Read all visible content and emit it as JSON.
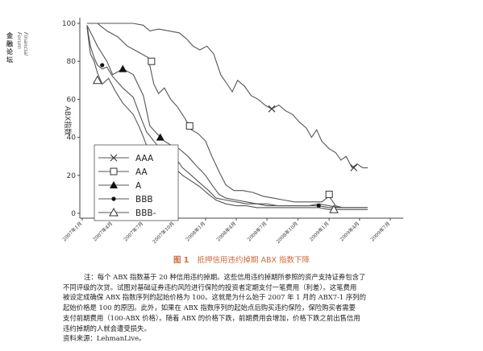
{
  "sidebar": {
    "title_zh": "金融论坛",
    "title_en": "Financial Forum"
  },
  "colors": {
    "line": "#555555",
    "axis": "#444444",
    "caption": "#d06a3c"
  },
  "chart_data": {
    "type": "line",
    "ylabel": "ABX指数",
    "yticks": [
      0,
      20,
      40,
      60,
      80,
      100
    ],
    "ylim": [
      0,
      100
    ],
    "xlim": [
      "2007-01-01",
      "2009-08-01"
    ],
    "xticks": [
      "2007年1月",
      "2007年4月",
      "2007年7月",
      "2007年10月",
      "2008年1月",
      "2008年4月",
      "2008年7月",
      "2008年10月",
      "2009年1月",
      "2009年4月",
      "2009年7月"
    ],
    "xtick_dates": [
      "2007-01-01",
      "2007-04-01",
      "2007-07-01",
      "2007-10-01",
      "2008-01-01",
      "2008-04-01",
      "2008-07-01",
      "2008-10-01",
      "2009-01-01",
      "2009-04-01",
      "2009-07-01"
    ],
    "legend_position": "bottom-left",
    "series": [
      {
        "name": "AAA",
        "marker": "x",
        "points": [
          [
            "2007-01-15",
            100
          ],
          [
            "2007-04-01",
            100
          ],
          [
            "2007-06-01",
            100
          ],
          [
            "2007-07-01",
            99
          ],
          [
            "2007-07-20",
            96
          ],
          [
            "2007-08-15",
            97
          ],
          [
            "2007-09-15",
            96
          ],
          [
            "2007-10-15",
            95
          ],
          [
            "2007-11-05",
            92
          ],
          [
            "2007-11-25",
            88
          ],
          [
            "2007-12-15",
            86
          ],
          [
            "2008-01-05",
            88
          ],
          [
            "2008-01-25",
            84
          ],
          [
            "2008-02-15",
            73
          ],
          [
            "2008-03-05",
            68
          ],
          [
            "2008-03-20",
            64
          ],
          [
            "2008-04-05",
            70
          ],
          [
            "2008-04-25",
            67
          ],
          [
            "2008-05-15",
            62
          ],
          [
            "2008-06-05",
            60
          ],
          [
            "2008-06-25",
            57
          ],
          [
            "2008-07-15",
            55
          ],
          [
            "2008-08-05",
            57
          ],
          [
            "2008-08-25",
            54
          ],
          [
            "2008-09-15",
            52
          ],
          [
            "2008-10-05",
            48
          ],
          [
            "2008-10-25",
            45
          ],
          [
            "2008-11-10",
            40
          ],
          [
            "2008-11-25",
            44
          ],
          [
            "2008-12-10",
            38
          ],
          [
            "2009-01-01",
            34
          ],
          [
            "2009-01-20",
            32
          ],
          [
            "2009-02-05",
            28
          ],
          [
            "2009-02-20",
            30
          ],
          [
            "2009-03-10",
            24
          ],
          [
            "2009-03-25",
            26
          ],
          [
            "2009-04-10",
            24
          ],
          [
            "2009-04-25",
            24
          ]
        ],
        "markers": [
          [
            "2008-07-15",
            55
          ],
          [
            "2009-03-15",
            24
          ]
        ]
      },
      {
        "name": "AA",
        "marker": "square",
        "points": [
          [
            "2007-01-15",
            100
          ],
          [
            "2007-02-15",
            100
          ],
          [
            "2007-03-15",
            96
          ],
          [
            "2007-04-15",
            93
          ],
          [
            "2007-05-15",
            88
          ],
          [
            "2007-06-15",
            85
          ],
          [
            "2007-07-15",
            82
          ],
          [
            "2007-08-01",
            68
          ],
          [
            "2007-08-15",
            63
          ],
          [
            "2007-09-01",
            66
          ],
          [
            "2007-09-20",
            60
          ],
          [
            "2007-10-10",
            56
          ],
          [
            "2007-11-01",
            50
          ],
          [
            "2007-11-20",
            44
          ],
          [
            "2007-12-10",
            42
          ],
          [
            "2008-01-01",
            38
          ],
          [
            "2008-01-20",
            30
          ],
          [
            "2008-02-10",
            22
          ],
          [
            "2008-03-01",
            15
          ],
          [
            "2008-03-25",
            12
          ],
          [
            "2008-04-20",
            12
          ],
          [
            "2008-05-20",
            11
          ],
          [
            "2008-06-20",
            9
          ],
          [
            "2008-07-20",
            8
          ],
          [
            "2008-08-20",
            7
          ],
          [
            "2008-09-20",
            6
          ],
          [
            "2008-10-20",
            6
          ],
          [
            "2008-11-15",
            6
          ],
          [
            "2008-12-10",
            6
          ],
          [
            "2009-01-01",
            9
          ],
          [
            "2009-01-20",
            4
          ],
          [
            "2009-02-10",
            3
          ],
          [
            "2009-03-10",
            3
          ],
          [
            "2009-04-01",
            3
          ],
          [
            "2009-04-25",
            3
          ]
        ],
        "markers": [
          [
            "2007-07-25",
            80
          ],
          [
            "2007-11-15",
            46
          ],
          [
            "2009-01-01",
            10
          ]
        ]
      },
      {
        "name": "A",
        "marker": "triangle-filled",
        "points": [
          [
            "2007-01-15",
            99
          ],
          [
            "2007-02-01",
            93
          ],
          [
            "2007-02-15",
            88
          ],
          [
            "2007-03-01",
            84
          ],
          [
            "2007-03-15",
            80
          ],
          [
            "2007-04-01",
            73
          ],
          [
            "2007-05-01",
            76
          ],
          [
            "2007-06-01",
            73
          ],
          [
            "2007-07-01",
            62
          ],
          [
            "2007-07-20",
            46
          ],
          [
            "2007-08-10",
            42
          ],
          [
            "2007-09-01",
            38
          ],
          [
            "2007-09-20",
            36
          ],
          [
            "2007-10-15",
            34
          ],
          [
            "2007-11-10",
            30
          ],
          [
            "2007-12-05",
            25
          ],
          [
            "2008-01-01",
            20
          ],
          [
            "2008-01-20",
            15
          ],
          [
            "2008-02-10",
            10
          ],
          [
            "2008-03-01",
            8
          ],
          [
            "2008-04-01",
            7
          ],
          [
            "2008-05-01",
            6
          ],
          [
            "2008-06-01",
            5
          ],
          [
            "2008-07-01",
            5
          ],
          [
            "2008-08-01",
            4
          ],
          [
            "2008-09-01",
            4
          ],
          [
            "2008-10-01",
            4
          ],
          [
            "2008-11-01",
            4
          ],
          [
            "2008-12-01",
            5
          ],
          [
            "2009-01-01",
            4
          ],
          [
            "2009-02-01",
            3
          ],
          [
            "2009-03-01",
            3
          ],
          [
            "2009-04-25",
            3
          ]
        ],
        "markers": [
          [
            "2007-05-01",
            76
          ],
          [
            "2007-08-20",
            40
          ]
        ]
      },
      {
        "name": "BBB",
        "marker": "dot",
        "points": [
          [
            "2007-01-15",
            99
          ],
          [
            "2007-01-25",
            88
          ],
          [
            "2007-02-05",
            82
          ],
          [
            "2007-02-15",
            78
          ],
          [
            "2007-03-01",
            76
          ],
          [
            "2007-03-15",
            77
          ],
          [
            "2007-04-01",
            72
          ],
          [
            "2007-05-01",
            66
          ],
          [
            "2007-06-01",
            61
          ],
          [
            "2007-06-20",
            52
          ],
          [
            "2007-07-10",
            43
          ],
          [
            "2007-08-01",
            38
          ],
          [
            "2007-08-20",
            34
          ],
          [
            "2007-09-10",
            33
          ],
          [
            "2007-10-01",
            30
          ],
          [
            "2007-10-25",
            24
          ],
          [
            "2007-11-20",
            20
          ],
          [
            "2007-12-15",
            16
          ],
          [
            "2008-01-10",
            12
          ],
          [
            "2008-02-01",
            8
          ],
          [
            "2008-03-01",
            7
          ],
          [
            "2008-04-01",
            6
          ],
          [
            "2008-05-01",
            5
          ],
          [
            "2008-06-01",
            5
          ],
          [
            "2008-07-01",
            4
          ],
          [
            "2008-08-01",
            4
          ],
          [
            "2008-09-01",
            4
          ],
          [
            "2008-10-01",
            4
          ],
          [
            "2008-11-01",
            4
          ],
          [
            "2008-12-01",
            4
          ],
          [
            "2009-01-01",
            3
          ],
          [
            "2009-02-01",
            3
          ],
          [
            "2009-04-25",
            3
          ]
        ],
        "markers": [
          [
            "2007-03-01",
            78
          ],
          [
            "2008-12-01",
            4
          ]
        ]
      },
      {
        "name": "BBB-",
        "marker": "triangle-open",
        "points": [
          [
            "2007-01-15",
            98
          ],
          [
            "2007-01-25",
            84
          ],
          [
            "2007-02-05",
            80
          ],
          [
            "2007-02-15",
            74
          ],
          [
            "2007-03-01",
            68
          ],
          [
            "2007-03-20",
            71
          ],
          [
            "2007-04-10",
            64
          ],
          [
            "2007-05-01",
            58
          ],
          [
            "2007-06-01",
            52
          ],
          [
            "2007-06-20",
            45
          ],
          [
            "2007-07-10",
            36
          ],
          [
            "2007-08-01",
            32
          ],
          [
            "2007-08-20",
            30
          ],
          [
            "2007-09-10",
            27
          ],
          [
            "2007-10-01",
            24
          ],
          [
            "2007-10-25",
            20
          ],
          [
            "2007-11-20",
            17
          ],
          [
            "2007-12-15",
            14
          ],
          [
            "2008-01-10",
            10
          ],
          [
            "2008-02-01",
            7
          ],
          [
            "2008-03-01",
            5
          ],
          [
            "2008-04-01",
            4
          ],
          [
            "2008-05-01",
            4
          ],
          [
            "2008-06-01",
            3
          ],
          [
            "2008-07-01",
            3
          ],
          [
            "2008-08-01",
            3
          ],
          [
            "2008-09-01",
            3
          ],
          [
            "2008-10-01",
            3
          ],
          [
            "2008-11-01",
            3
          ],
          [
            "2008-12-01",
            3
          ],
          [
            "2009-01-01",
            2
          ],
          [
            "2009-02-01",
            2
          ],
          [
            "2009-04-25",
            2
          ]
        ],
        "markers": [
          [
            "2007-02-15",
            70
          ],
          [
            "2007-08-15",
            32
          ],
          [
            "2009-01-15",
            2
          ]
        ]
      }
    ]
  },
  "caption": {
    "num": "图 1",
    "text": "抵押信用违约掉期 ABX 指数下降"
  },
  "note": {
    "lines": [
      "注：每个 ABX 指数基于 20 种信用违约掉期。这些信用违约掉期所参照的资产支持证券包含了",
      "不同评级的次贷。试图对基础证券违约风险进行保险的投资者定期支付一笔费用（利差）。这笔费用",
      "被设定成确保 ABX 指数序列的起始价格为 100。这就是为什么始于 2007 年 1 月的 ABX7-1 序列的",
      "起始价格是 100 的原因。此外，如果在 ABX 指数序列的起始点后购买违约保险，保险购买者需要",
      "支付前期费用（100-ABX 价格）。随着 ABX 的价格下跌，前期费用会增加，价格下跌之前出售信用",
      "违约掉期的人就会遭受损失。"
    ],
    "source": "资料来源：LehmanLive。"
  }
}
